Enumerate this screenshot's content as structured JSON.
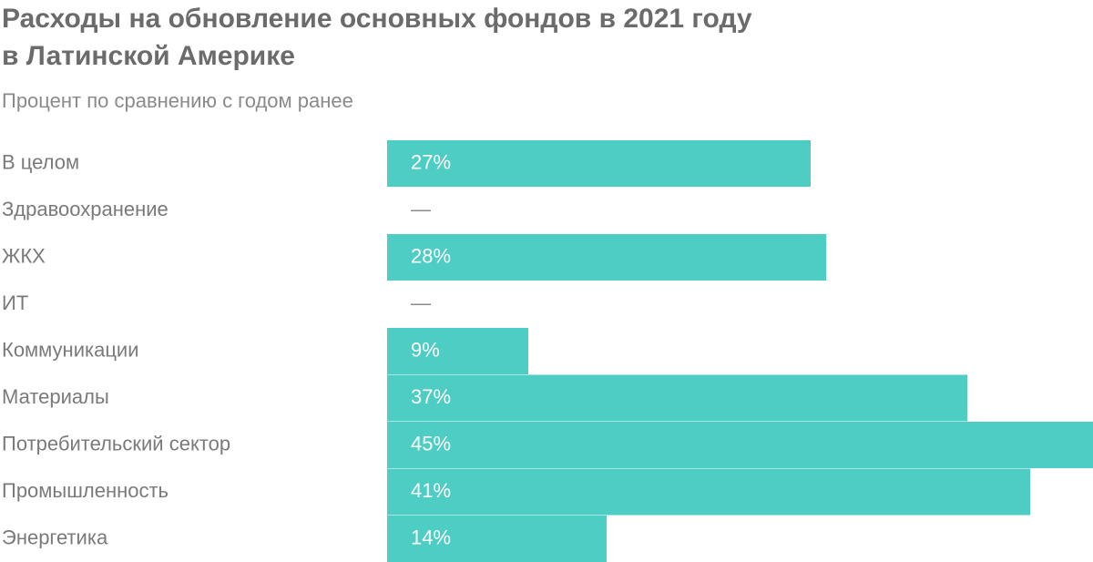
{
  "chart_data": {
    "type": "bar",
    "orientation": "horizontal",
    "title": "Расходы на обновление основных фондов в 2021 году",
    "title_line2": "в Латинской Америке",
    "subtitle": "Процент по сравнению с годом ранее",
    "categories": [
      "В целом",
      "Здравоохранение",
      "ЖКХ",
      "ИТ",
      "Коммуникации",
      "Материалы",
      "Потребительский сектор",
      "Промышленность",
      "Энергетика"
    ],
    "values": [
      27,
      null,
      28,
      null,
      9,
      37,
      45,
      41,
      14
    ],
    "value_labels": [
      "27%",
      "—",
      "28%",
      "—",
      "9%",
      "37%",
      "45%",
      "41%",
      "14%"
    ],
    "color": "#4ecdc4"
  }
}
